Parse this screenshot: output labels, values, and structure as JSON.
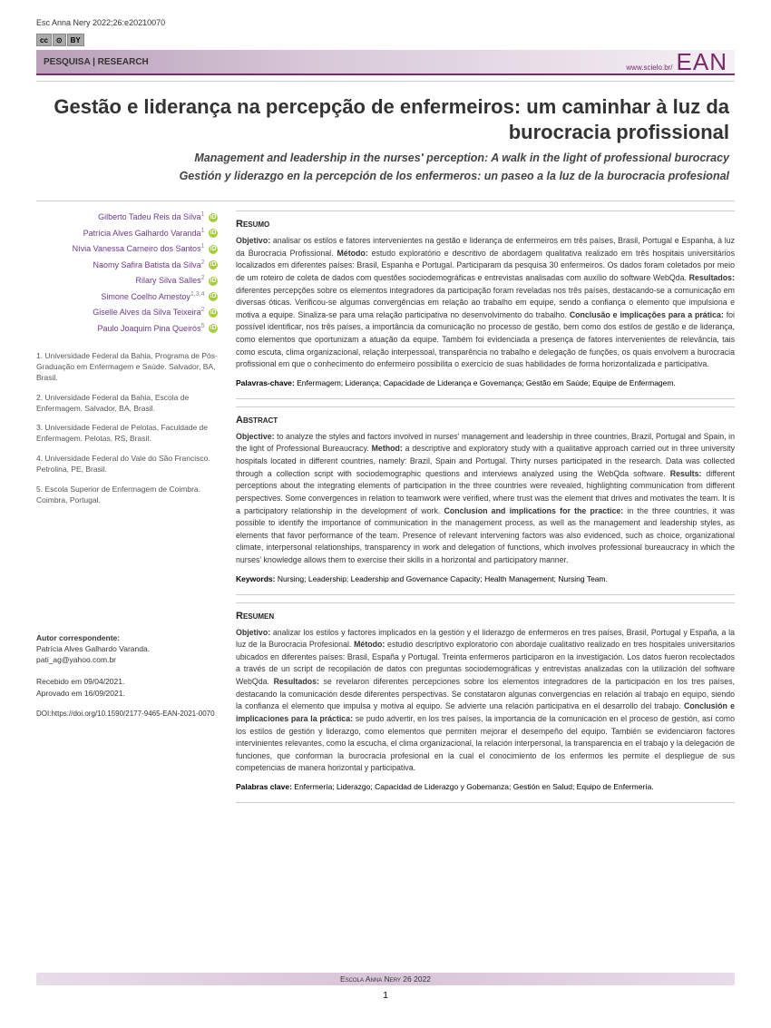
{
  "header": {
    "citation": "Esc Anna Nery 2022;26:e20210070",
    "cc_parts": [
      "cc",
      "⊙",
      "BY"
    ],
    "section_label": "PESQUISA | RESEARCH",
    "scielo": "www.scielo.br/",
    "logo": "EAN"
  },
  "title": {
    "main": "Gestão e liderança na percepção de enfermeiros: um caminhar à luz da burocracia profissional",
    "en": "Management and leadership in the nurses' perception: A walk in the light of professional burocracy",
    "es": "Gestión y liderazgo en la percepción de los enfermeros: un paseo a la luz de la burocracia profesional"
  },
  "authors": [
    {
      "name": "Gilberto Tadeu Reis da Silva",
      "sup": "1"
    },
    {
      "name": "Patrícia Alves Galhardo Varanda",
      "sup": "1"
    },
    {
      "name": "Nívia Vanessa Carneiro dos Santos",
      "sup": "1"
    },
    {
      "name": "Naomy Safira Batista da Silva",
      "sup": "2"
    },
    {
      "name": "Rilary Silva Salles",
      "sup": "2"
    },
    {
      "name": "Simone Coelho Amestoy",
      "sup": "1,3,4"
    },
    {
      "name": "Giselle Alves da Silva Teixeira",
      "sup": "2"
    },
    {
      "name": "Paulo Joaquim Pina Queirós",
      "sup": "5"
    }
  ],
  "affiliations": [
    "1. Universidade Federal da Bahia, Programa de Pós-Graduação em Enfermagem e Saúde. Salvador, BA, Brasil.",
    "2. Universidade Federal da Bahia, Escola de Enfermagem. Salvador, BA, Brasil.",
    "3. Universidade Federal de Pelotas, Faculdade de Enfermagem. Pelotas, RS, Brasil.",
    "4. Universidade Federal do Vale do São Francisco. Petrolina, PE, Brasil.",
    "5. Escola Superior de Enfermagem de Coimbra. Coimbra, Portugal."
  ],
  "corr": {
    "label": "Autor correspondente:",
    "name": "Patrícia Alves Galhardo Varanda.",
    "email": "pati_ag@yahoo.com.br"
  },
  "dates": {
    "received": "Recebido em 09/04/2021.",
    "approved": "Aprovado em 16/09/2021."
  },
  "doi": "DOI:https://doi.org/10.1590/2177-9465-EAN-2021-0070",
  "abstracts": {
    "pt": {
      "heading": "Resumo",
      "body": "<b>Objetivo:</b> analisar os estilos e fatores intervenientes na gestão e liderança de enfermeiros em três países, Brasil, Portugal e Espanha, à luz da Burocracia Profissional. <b>Método:</b> estudo exploratório e descritivo de abordagem qualitativa realizado em três hospitais universitários localizados em diferentes países: Brasil, Espanha e Portugal. Participaram da pesquisa 30 enfermeiros. Os dados foram coletados por meio de um roteiro de coleta de dados com questões sociodemográficas e entrevistas analisadas com auxílio do software WebQda. <b>Resultados:</b> diferentes percepções sobre os elementos integradores da participação foram reveladas nos três países, destacando-se a comunicação em diversas óticas. Verificou-se algumas convergências em relação ao trabalho em equipe, sendo a confiança o elemento que impulsiona e motiva a equipe. Sinaliza-se para uma relação participativa no desenvolvimento do trabalho. <b>Conclusão e implicações para a prática:</b> foi possível identificar, nos três países, a importância da comunicação no processo de gestão, bem como dos estilos de gestão e de liderança, como elementos que oportunizam a atuação da equipe. Também foi evidenciada a presença de fatores intervenientes de relevância, tais como escuta, clima organizacional, relação interpessoal, transparência no trabalho e delegação de funções, os quais envolvem a burocracia profissional em que o conhecimento do enfermeiro possibilita o exercício de suas habilidades de forma horizontalizada e participativa.",
      "kw_label": "Palavras-chave:",
      "kw": "Enfermagem; Liderança; Capacidade de Liderança e Governança; Gestão em Saúde; Equipe de Enfermagem."
    },
    "en": {
      "heading": "Abstract",
      "body": "<b>Objective:</b> to analyze the styles and factors involved in nurses' management and leadership in three countries, Brazil, Portugal and Spain, in the light of Professional Bureaucracy. <b>Method:</b> a descriptive and exploratory study with a qualitative approach carried out in three university hospitals located in different countries, namely: Brazil, Spain and Portugal. Thirty nurses participated in the research. Data was collected through a collection script with sociodemographic questions and interviews analyzed using the WebQda software. <b>Results:</b> different perceptions about the integrating elements of participation in the three countries were revealed, highlighting communication from different perspectives. Some convergences in relation to teamwork were verified, where trust was the element that drives and motivates the team. It is a participatory relationship in the development of work. <b>Conclusion and implications for the practice:</b> in the three countries, it was possible to identify the importance of communication in the management process, as well as the management and leadership styles, as elements that favor performance of the team. Presence of relevant intervening factors was also evidenced, such as choice, organizational climate, interpersonal relationships, transparency in work and delegation of functions, which involves professional bureaucracy in which the nurses' knowledge allows them to exercise their skills in a horizontal and participatory manner.",
      "kw_label": "Keywords:",
      "kw": "Nursing; Leadership; Leadership and Governance Capacity; Health Management; Nursing Team."
    },
    "es": {
      "heading": "Resumen",
      "body": "<b>Objetivo:</b> analizar los estilos y factores implicados en la gestión y el liderazgo de enfermeros en tres países, Brasil, Portugal y España, a la luz de la Burocracia Profesional. <b>Método:</b> estudio descriptivo exploratorio con abordaje cualitativo realizado en tres hospitales universitarios ubicados en diferentes países: Brasil, España y Portugal. Treinta enfermeros participaron en la investigación. Los datos fueron recolectados a través de un script de recopilación de datos con preguntas sociodemográficas y entrevistas analizadas con la utilización del software WebQda. <b>Resultados:</b> se revelaron diferentes percepciones sobre los elementos integradores de la participación en los tres países, destacando la comunicación desde diferentes perspectivas. Se constataron algunas convergencias en relación al trabajo en equipo, siendo la confianza el elemento que impulsa y motiva al equipo. Se advierte una relación participativa en el desarrollo del trabajo. <b>Conclusión e implicaciones para la práctica:</b> se pudo advertir, en los tres países, la importancia de la comunicación en el proceso de gestión, así como los estilos de gestión y liderazgo, como elementos que permiten mejorar el desempeño del equipo. También se evidenciaron factores intervinientes relevantes, como la escucha, el clima organizacional, la relación interpersonal, la transparencia en el trabajo y la delegación de funciones, que conforman la burocracia profesional en la cual el conocimiento de los enfermos les permite el despliegue de sus competencias de manera horizontal y participativa.",
      "kw_label": "Palabras clave:",
      "kw": "Enfermería; Liderazgo; Capacidad de Liderazgo y Gobernanza; Gestión en Salud; Equipo de Enfermería."
    }
  },
  "footer": {
    "journal": "Escola Anna Nery 26 2022",
    "page": "1"
  },
  "colors": {
    "accent": "#7a2a6a",
    "author_link": "#6a3a8a",
    "orcid": "#a6ce39"
  }
}
